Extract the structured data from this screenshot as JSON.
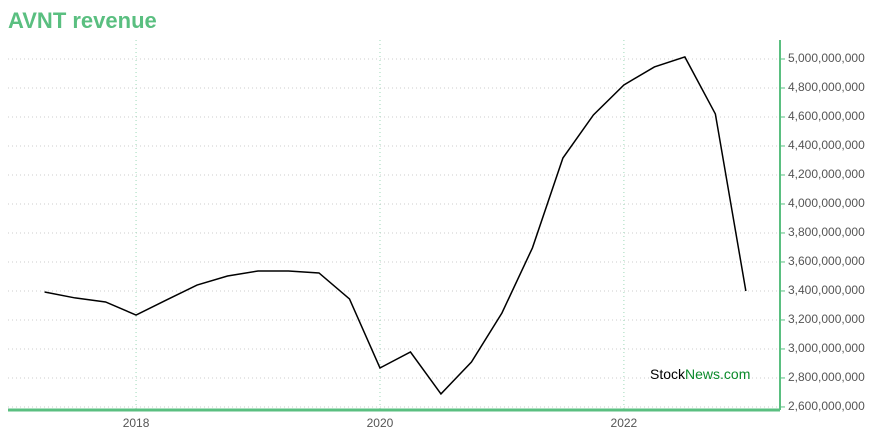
{
  "chart_data": {
    "type": "line",
    "title": "AVNT revenue",
    "x": [
      2017.25,
      2017.5,
      2017.75,
      2018.0,
      2018.25,
      2018.5,
      2018.75,
      2019.0,
      2019.25,
      2019.5,
      2019.75,
      2020.0,
      2020.25,
      2020.5,
      2020.75,
      2021.0,
      2021.25,
      2021.5,
      2021.75,
      2022.0,
      2022.25,
      2022.5,
      2022.75,
      2023.0
    ],
    "series": [
      {
        "color": "#000000",
        "values": [
          3393000000,
          3352000000,
          3324000000,
          3234000000,
          3338000000,
          3441000000,
          3503000000,
          3538000000,
          3538000000,
          3524000000,
          3345000000,
          2869000000,
          2979000000,
          2690000000,
          2910000000,
          3248000000,
          3697000000,
          4317000000,
          4614000000,
          4821000000,
          4945000000,
          5014000000,
          4621000000,
          3400000000
        ]
      }
    ],
    "xlim": [
      2016.95,
      2023.28
    ],
    "xticks": [
      2018,
      2020,
      2022
    ],
    "ylim": [
      2579000000,
      5131000000
    ],
    "yticks": [
      {
        "value": 2600000000,
        "label": "2,600,000,000"
      },
      {
        "value": 2800000000,
        "label": "2,800,000,000"
      },
      {
        "value": 3000000000,
        "label": "3,000,000,000"
      },
      {
        "value": 3200000000,
        "label": "3,200,000,000"
      },
      {
        "value": 3400000000,
        "label": "3,400,000,000"
      },
      {
        "value": 3600000000,
        "label": "3,600,000,000"
      },
      {
        "value": 3800000000,
        "label": "3,800,000,000"
      },
      {
        "value": 4000000000,
        "label": "4,000,000,000"
      },
      {
        "value": 4200000000,
        "label": "4,200,000,000"
      },
      {
        "value": 4400000000,
        "label": "4,400,000,000"
      },
      {
        "value": 4600000000,
        "label": "4,600,000,000"
      },
      {
        "value": 4800000000,
        "label": "4,800,000,000"
      },
      {
        "value": 5000000000,
        "label": "5,000,000,000"
      }
    ],
    "grid": true,
    "axis_color": "#5abf80",
    "watermark": [
      "Stock",
      "News.com"
    ]
  }
}
